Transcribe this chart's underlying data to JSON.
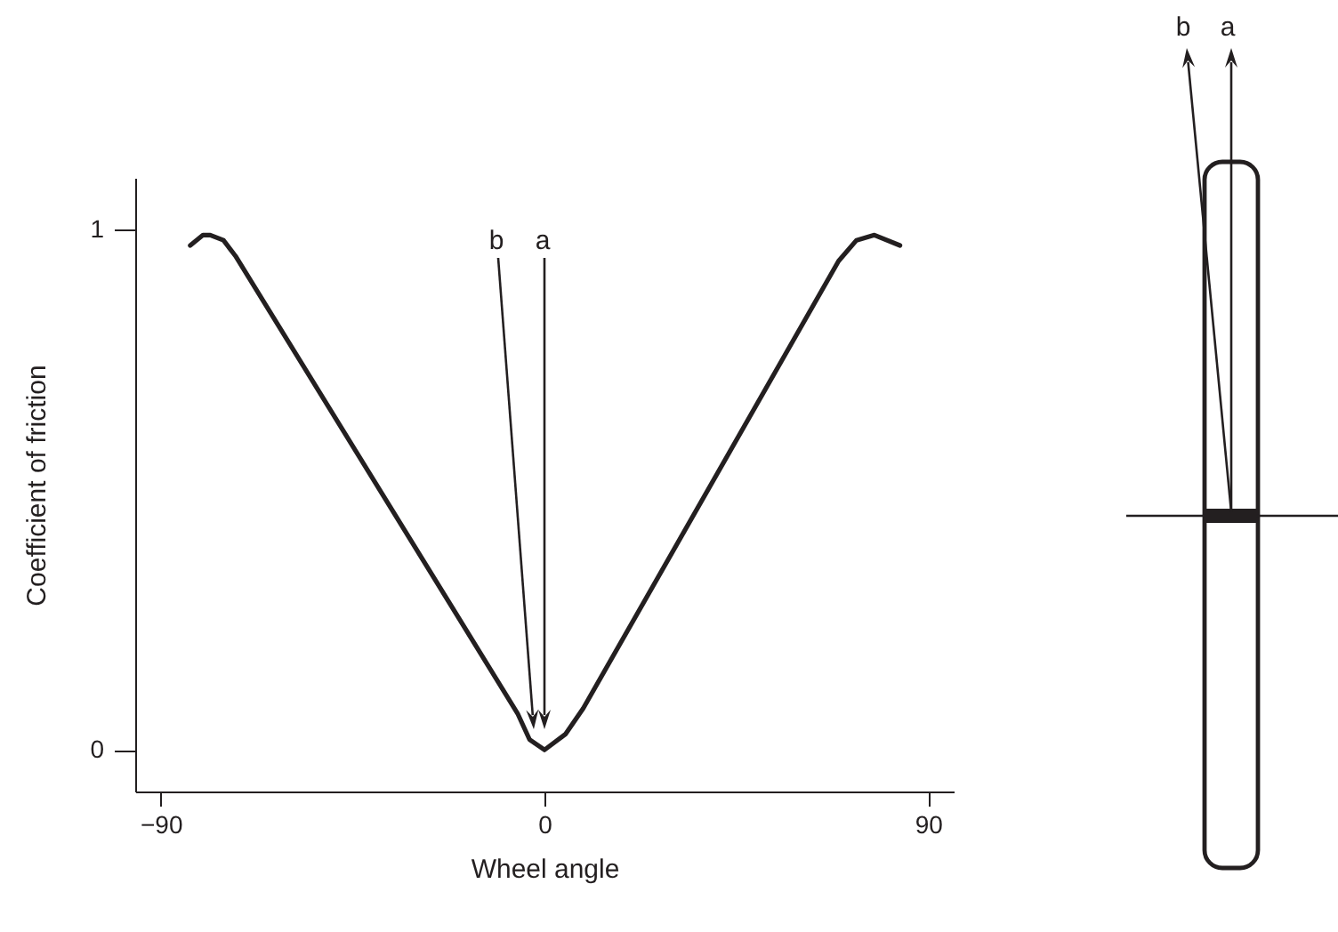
{
  "chart_data": {
    "type": "line",
    "xlabel": "Wheel angle",
    "ylabel": "Coefficient of friction",
    "x": [
      -83.1,
      -80.1,
      -78.4,
      -75.3,
      -72.5,
      -6.3,
      -3.5,
      0,
      4.9,
      9.1,
      69,
      73.2,
      77.4,
      83.4
    ],
    "series": [
      {
        "color": "#231f20",
        "values": [
          0.97,
          0.99,
          0.99,
          0.98,
          0.95,
          0.07,
          0.02,
          0,
          0.03,
          0.08,
          0.94,
          0.98,
          0.99,
          0.97
        ]
      }
    ],
    "xlim": [
      -96,
      96
    ],
    "ylim": [
      -0.08,
      1.1
    ],
    "xticks": [
      {
        "value": -90,
        "label": "−90"
      },
      0,
      90
    ],
    "yticks": [
      0,
      1
    ],
    "line_style": "solid",
    "annotations": [
      "b",
      "a",
      "b",
      "a"
    ]
  }
}
